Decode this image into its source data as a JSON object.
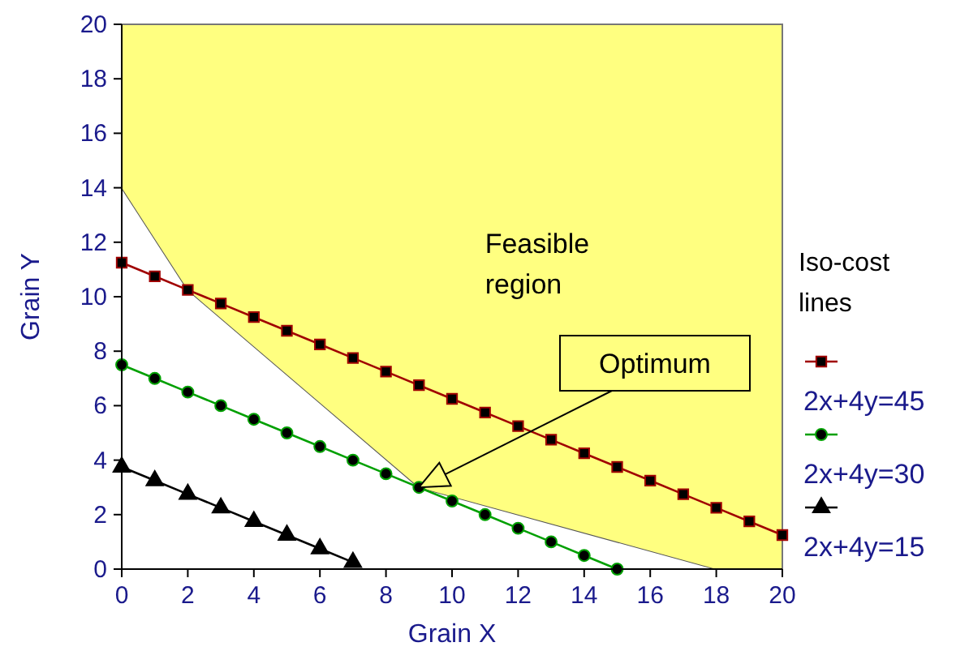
{
  "chart_data": {
    "type": "line",
    "xlabel": "Grain X",
    "ylabel": "Grain Y",
    "legend_title": "Iso-cost lines",
    "legend": "right",
    "grid": false,
    "xlim": [
      0,
      20
    ],
    "ylim": [
      0,
      20
    ],
    "xticks": [
      0,
      2,
      4,
      6,
      8,
      10,
      12,
      14,
      16,
      18,
      20
    ],
    "yticks": [
      0,
      2,
      4,
      6,
      8,
      10,
      12,
      14,
      16,
      18,
      20
    ],
    "annotations": [
      "Feasible region",
      "Optimum"
    ],
    "stacked": true,
    "series": [
      {
        "type": "area",
        "color": "#ffffff",
        "x": [
          0,
          2,
          9,
          18,
          20
        ],
        "values": [
          14,
          10.25,
          3,
          0,
          0
        ]
      },
      {
        "type": "area",
        "color": "#ffff80",
        "x": [
          0,
          2,
          9,
          18,
          20
        ],
        "values": [
          6,
          9.75,
          17,
          20,
          20
        ]
      },
      {
        "name": "2x+4y=45",
        "color": "#a00000",
        "marker": "square",
        "x": [
          0,
          1,
          2,
          3,
          4,
          5,
          6,
          7,
          8,
          9,
          10,
          11,
          12,
          13,
          14,
          15,
          16,
          17,
          18,
          19,
          20
        ],
        "values": [
          11.25,
          10.75,
          10.25,
          9.75,
          9.25,
          8.75,
          8.25,
          7.75,
          7.25,
          6.75,
          6.25,
          5.75,
          5.25,
          4.75,
          4.25,
          3.75,
          3.25,
          2.75,
          2.25,
          1.75,
          1.25
        ]
      },
      {
        "name": "2x+4y=30",
        "color": "#00a000",
        "marker": "circle",
        "x": [
          0,
          1,
          2,
          3,
          4,
          5,
          6,
          7,
          8,
          9,
          10,
          11,
          12,
          13,
          14,
          15
        ],
        "values": [
          7.5,
          7,
          6.5,
          6,
          5.5,
          5,
          4.5,
          4,
          3.5,
          3,
          2.5,
          2,
          1.5,
          1,
          0.5,
          0
        ]
      },
      {
        "name": "2x+4y=15",
        "color": "#000000",
        "marker": "triangle",
        "x": [
          0,
          1,
          2,
          3,
          4,
          5,
          6,
          7
        ],
        "values": [
          3.75,
          3.25,
          2.75,
          2.25,
          1.75,
          1.25,
          0.75,
          0.25
        ]
      }
    ]
  }
}
